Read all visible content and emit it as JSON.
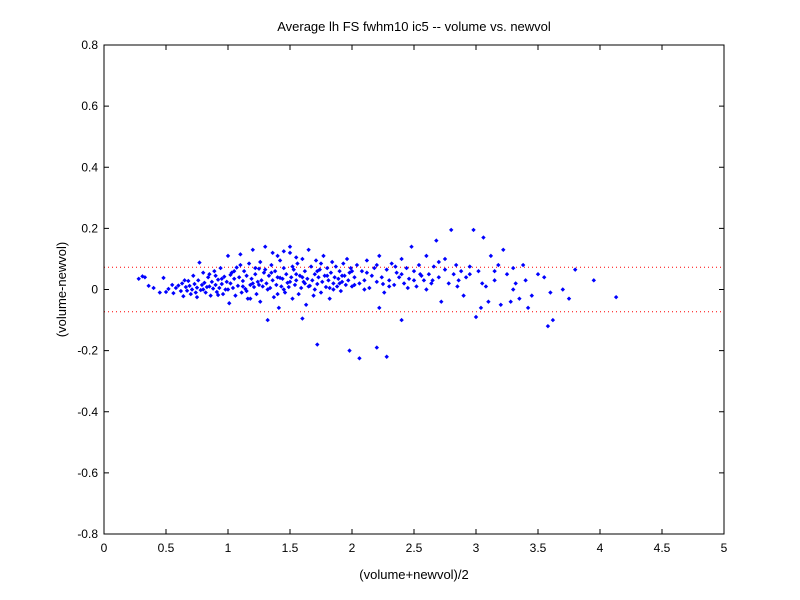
{
  "chart_data": {
    "type": "scatter",
    "title": "Average lh FS fwhm10 ic5 -- volume vs. newvol",
    "xlabel": "(volume+newvol)/2",
    "ylabel": "(volume-newvol)",
    "xlim": [
      0,
      5
    ],
    "ylim": [
      -0.8,
      0.8
    ],
    "xticks": [
      "0",
      "0.5",
      "1",
      "1.5",
      "2",
      "2.5",
      "3",
      "3.5",
      "4",
      "4.5",
      "5"
    ],
    "yticks": [
      "-0.8",
      "-0.6",
      "-0.4",
      "-0.2",
      "0",
      "0.2",
      "0.4",
      "0.6",
      "0.8"
    ],
    "grid": false,
    "reference_lines": [
      0.073,
      -0.073
    ],
    "colors": {
      "points": "#0000ff",
      "reference": "#ff0000",
      "axes": "#000000"
    },
    "series": [
      {
        "points": [
          [
            0.28,
            0.035
          ],
          [
            0.31,
            0.043
          ],
          [
            0.33,
            0.04
          ],
          [
            0.36,
            0.012
          ],
          [
            0.4,
            0.005
          ],
          [
            0.45,
            -0.01
          ],
          [
            0.48,
            0.038
          ],
          [
            0.5,
            -0.008
          ],
          [
            0.52,
            0.002
          ],
          [
            0.55,
            0.015
          ],
          [
            0.56,
            -0.012
          ],
          [
            0.58,
            0.005
          ],
          [
            0.6,
            0.013
          ],
          [
            0.62,
            -0.005
          ],
          [
            0.63,
            0.02
          ],
          [
            0.64,
            -0.022
          ],
          [
            0.66,
            0.008
          ],
          [
            0.67,
            -0.004
          ],
          [
            0.68,
            0.028
          ],
          [
            0.69,
            0.012
          ],
          [
            0.7,
            -0.015
          ],
          [
            0.71,
            0.0
          ],
          [
            0.72,
            0.045
          ],
          [
            0.73,
            0.018
          ],
          [
            0.74,
            -0.01
          ],
          [
            0.75,
            0.006
          ],
          [
            0.76,
            0.03
          ],
          [
            0.77,
            0.088
          ],
          [
            0.78,
            -0.002
          ],
          [
            0.79,
            0.015
          ],
          [
            0.8,
            0.055
          ],
          [
            0.81,
            0.022
          ],
          [
            0.82,
            -0.01
          ],
          [
            0.83,
            0.008
          ],
          [
            0.84,
            0.04
          ],
          [
            0.85,
            0.01
          ],
          [
            0.86,
            -0.02
          ],
          [
            0.87,
            0.025
          ],
          [
            0.88,
            0.003
          ],
          [
            0.89,
            0.06
          ],
          [
            0.9,
            0.015
          ],
          [
            0.91,
            -0.008
          ],
          [
            0.92,
            0.032
          ],
          [
            0.93,
            0.005
          ],
          [
            0.94,
            0.07
          ],
          [
            0.95,
            0.018
          ],
          [
            0.96,
            -0.015
          ],
          [
            0.97,
            0.042
          ],
          [
            0.98,
            0.0
          ],
          [
            0.99,
            0.025
          ],
          [
            1.0,
            0.11
          ],
          [
            1.01,
            -0.045
          ],
          [
            1.02,
            0.02
          ],
          [
            1.03,
            0.055
          ],
          [
            1.04,
            0.005
          ],
          [
            1.05,
            0.035
          ],
          [
            1.06,
            -0.02
          ],
          [
            1.07,
            0.072
          ],
          [
            1.08,
            0.012
          ],
          [
            1.09,
            0.04
          ],
          [
            1.1,
            0.115
          ],
          [
            1.11,
            -0.01
          ],
          [
            1.12,
            0.028
          ],
          [
            1.13,
            0.06
          ],
          [
            1.14,
            0.002
          ],
          [
            1.15,
            0.045
          ],
          [
            1.16,
            -0.03
          ],
          [
            1.17,
            0.085
          ],
          [
            1.18,
            0.015
          ],
          [
            1.19,
            0.035
          ],
          [
            1.2,
            0.13
          ],
          [
            1.21,
            0.008
          ],
          [
            1.22,
            0.05
          ],
          [
            1.23,
            -0.015
          ],
          [
            1.24,
            0.025
          ],
          [
            1.25,
            0.068
          ],
          [
            1.26,
            -0.04
          ],
          [
            1.27,
            0.03
          ],
          [
            1.28,
            0.01
          ],
          [
            1.29,
            0.055
          ],
          [
            1.3,
            0.14
          ],
          [
            1.31,
            0.02
          ],
          [
            1.32,
            -0.1
          ],
          [
            1.33,
            0.045
          ],
          [
            1.34,
            0.005
          ],
          [
            1.35,
            0.08
          ],
          [
            1.36,
            0.03
          ],
          [
            1.37,
            -0.025
          ],
          [
            1.38,
            0.06
          ],
          [
            1.39,
            0.015
          ],
          [
            1.4,
            0.04
          ],
          [
            1.41,
            -0.06
          ],
          [
            1.42,
            0.095
          ],
          [
            1.43,
            0.01
          ],
          [
            1.44,
            0.035
          ],
          [
            1.45,
            0.07
          ],
          [
            1.46,
            -0.01
          ],
          [
            1.47,
            0.05
          ],
          [
            1.48,
            0.022
          ],
          [
            1.49,
            0.008
          ],
          [
            1.5,
            0.12
          ],
          [
            1.51,
            0.04
          ],
          [
            1.52,
            -0.03
          ],
          [
            1.53,
            0.065
          ],
          [
            1.54,
            0.015
          ],
          [
            1.55,
            0.03
          ],
          [
            1.56,
            0.085
          ],
          [
            1.57,
            -0.015
          ],
          [
            1.58,
            0.045
          ],
          [
            1.59,
            0.005
          ],
          [
            1.6,
            0.1
          ],
          [
            1.61,
            0.025
          ],
          [
            1.62,
            0.06
          ],
          [
            1.63,
            -0.05
          ],
          [
            1.64,
            0.035
          ],
          [
            1.65,
            0.13
          ],
          [
            1.66,
            0.012
          ],
          [
            1.67,
            0.075
          ],
          [
            1.68,
            0.03
          ],
          [
            1.69,
            -0.02
          ],
          [
            1.7,
            0.05
          ],
          [
            1.71,
            0.095
          ],
          [
            1.72,
            0.018
          ],
          [
            1.73,
            0.04
          ],
          [
            1.74,
            0.065
          ],
          [
            1.75,
            -0.01
          ],
          [
            1.76,
            0.025
          ],
          [
            1.77,
            0.11
          ],
          [
            1.78,
            0.045
          ],
          [
            1.79,
            0.008
          ],
          [
            1.8,
            0.07
          ],
          [
            1.81,
            0.03
          ],
          [
            1.82,
            -0.03
          ],
          [
            1.83,
            0.055
          ],
          [
            1.84,
            0.09
          ],
          [
            1.85,
            0.02
          ],
          [
            1.86,
            0.04
          ],
          [
            1.87,
            0.075
          ],
          [
            1.88,
            0.01
          ],
          [
            1.89,
            0.035
          ],
          [
            1.9,
            0.06
          ],
          [
            1.91,
            -0.005
          ],
          [
            1.92,
            0.025
          ],
          [
            1.93,
            0.085
          ],
          [
            1.94,
            0.045
          ],
          [
            1.95,
            0.015
          ],
          [
            1.96,
            0.1
          ],
          [
            1.97,
            0.03
          ],
          [
            1.98,
            0.055
          ],
          [
            1.99,
            0.07
          ],
          [
            2.0,
            0.01
          ],
          [
            2.02,
            0.04
          ],
          [
            2.04,
            0.08
          ],
          [
            2.06,
            0.02
          ],
          [
            2.08,
            0.06
          ],
          [
            2.1,
            0.03
          ],
          [
            2.12,
            0.095
          ],
          [
            2.14,
            0.005
          ],
          [
            2.16,
            0.045
          ],
          [
            2.18,
            0.07
          ],
          [
            2.2,
            0.025
          ],
          [
            2.22,
            0.11
          ],
          [
            2.24,
            0.04
          ],
          [
            2.26,
            -0.01
          ],
          [
            2.28,
            0.065
          ],
          [
            2.3,
            0.03
          ],
          [
            2.32,
            0.085
          ],
          [
            2.34,
            0.015
          ],
          [
            2.36,
            0.055
          ],
          [
            2.38,
            0.04
          ],
          [
            2.4,
            0.1
          ],
          [
            2.42,
            0.02
          ],
          [
            2.44,
            0.07
          ],
          [
            2.46,
            0.035
          ],
          [
            2.48,
            0.14
          ],
          [
            2.5,
            0.06
          ],
          [
            2.52,
            0.01
          ],
          [
            2.54,
            0.08
          ],
          [
            2.56,
            0.045
          ],
          [
            2.58,
            0.03
          ],
          [
            2.6,
            0.11
          ],
          [
            2.62,
            0.05
          ],
          [
            2.64,
            0.02
          ],
          [
            2.66,
            0.075
          ],
          [
            2.68,
            0.16
          ],
          [
            2.7,
            0.04
          ],
          [
            2.72,
            -0.04
          ],
          [
            2.75,
            0.065
          ],
          [
            2.78,
            0.02
          ],
          [
            2.8,
            0.195
          ],
          [
            2.82,
            0.05
          ],
          [
            2.84,
            0.08
          ],
          [
            2.86,
            0.03
          ],
          [
            2.88,
            0.06
          ],
          [
            2.9,
            -0.02
          ],
          [
            2.92,
            0.04
          ],
          [
            2.95,
            0.075
          ],
          [
            2.98,
            0.195
          ],
          [
            3.0,
            -0.09
          ],
          [
            3.02,
            0.06
          ],
          [
            3.04,
            -0.06
          ],
          [
            3.06,
            0.17
          ],
          [
            3.08,
            0.01
          ],
          [
            3.1,
            -0.04
          ],
          [
            3.12,
            0.11
          ],
          [
            3.15,
            0.03
          ],
          [
            3.18,
            0.08
          ],
          [
            3.2,
            -0.05
          ],
          [
            3.22,
            0.13
          ],
          [
            3.25,
            0.05
          ],
          [
            3.28,
            -0.04
          ],
          [
            3.3,
            0.07
          ],
          [
            3.32,
            0.02
          ],
          [
            3.35,
            -0.03
          ],
          [
            3.38,
            0.08
          ],
          [
            3.42,
            -0.06
          ],
          [
            3.45,
            -0.02
          ],
          [
            3.5,
            0.05
          ],
          [
            3.55,
            0.04
          ],
          [
            3.58,
            -0.12
          ],
          [
            3.62,
            -0.1
          ],
          [
            3.75,
            -0.03
          ],
          [
            3.8,
            0.065
          ],
          [
            3.95,
            0.03
          ],
          [
            4.13,
            -0.025
          ],
          [
            1.4,
            0.11
          ],
          [
            1.45,
            0.125
          ],
          [
            1.55,
            0.105
          ],
          [
            1.72,
            -0.18
          ],
          [
            1.6,
            -0.095
          ],
          [
            1.98,
            -0.2
          ],
          [
            2.06,
            -0.225
          ],
          [
            2.2,
            -0.19
          ],
          [
            2.28,
            -0.22
          ],
          [
            2.4,
            -0.1
          ],
          [
            2.22,
            -0.06
          ],
          [
            1.18,
            -0.03
          ],
          [
            1.26,
            0.09
          ],
          [
            1.36,
            0.12
          ],
          [
            1.5,
            0.14
          ],
          [
            0.95,
            0.035
          ],
          [
            1.05,
            0.06
          ],
          [
            1.15,
            -0.005
          ],
          [
            1.25,
            0.015
          ],
          [
            1.35,
            0.055
          ],
          [
            1.45,
            0.0
          ],
          [
            1.55,
            0.05
          ],
          [
            1.65,
            0.01
          ],
          [
            1.75,
            0.085
          ],
          [
            1.85,
            0.0
          ],
          [
            0.85,
            0.05
          ],
          [
            0.92,
            -0.018
          ],
          [
            1.02,
            0.048
          ],
          [
            1.12,
            0.01
          ],
          [
            1.22,
            0.07
          ],
          [
            1.32,
            0.0
          ],
          [
            1.42,
            0.038
          ],
          [
            1.52,
            0.075
          ],
          [
            1.62,
            0.02
          ],
          [
            1.72,
            0.06
          ],
          [
            1.82,
            0.005
          ],
          [
            1.92,
            0.045
          ],
          [
            2.02,
            0.015
          ],
          [
            2.12,
            0.055
          ],
          [
            2.25,
            0.018
          ],
          [
            2.35,
            0.075
          ],
          [
            2.45,
            0.005
          ],
          [
            2.55,
            0.05
          ],
          [
            2.65,
            0.03
          ],
          [
            2.75,
            0.1
          ],
          [
            0.65,
            0.03
          ],
          [
            0.75,
            -0.025
          ],
          [
            0.8,
            0.0
          ],
          [
            0.9,
            0.045
          ],
          [
            1.0,
            0.0
          ],
          [
            1.1,
            0.08
          ],
          [
            1.2,
            0.02
          ],
          [
            1.3,
            0.065
          ],
          [
            1.4,
            -0.015
          ],
          [
            1.5,
            0.025
          ],
          [
            1.6,
            0.04
          ],
          [
            1.7,
            0.0
          ],
          [
            1.8,
            0.045
          ],
          [
            1.9,
            0.02
          ],
          [
            2.0,
            0.06
          ],
          [
            2.1,
            0.0
          ],
          [
            2.2,
            0.08
          ],
          [
            2.3,
            0.01
          ],
          [
            2.4,
            0.05
          ],
          [
            2.5,
            0.03
          ],
          [
            2.6,
            0.0
          ],
          [
            2.7,
            0.09
          ],
          [
            2.85,
            0.01
          ],
          [
            2.95,
            0.05
          ],
          [
            3.05,
            0.02
          ],
          [
            3.15,
            0.06
          ],
          [
            3.3,
            0.0
          ],
          [
            3.4,
            0.03
          ],
          [
            3.6,
            -0.01
          ],
          [
            3.7,
            0.0
          ]
        ]
      }
    ]
  }
}
